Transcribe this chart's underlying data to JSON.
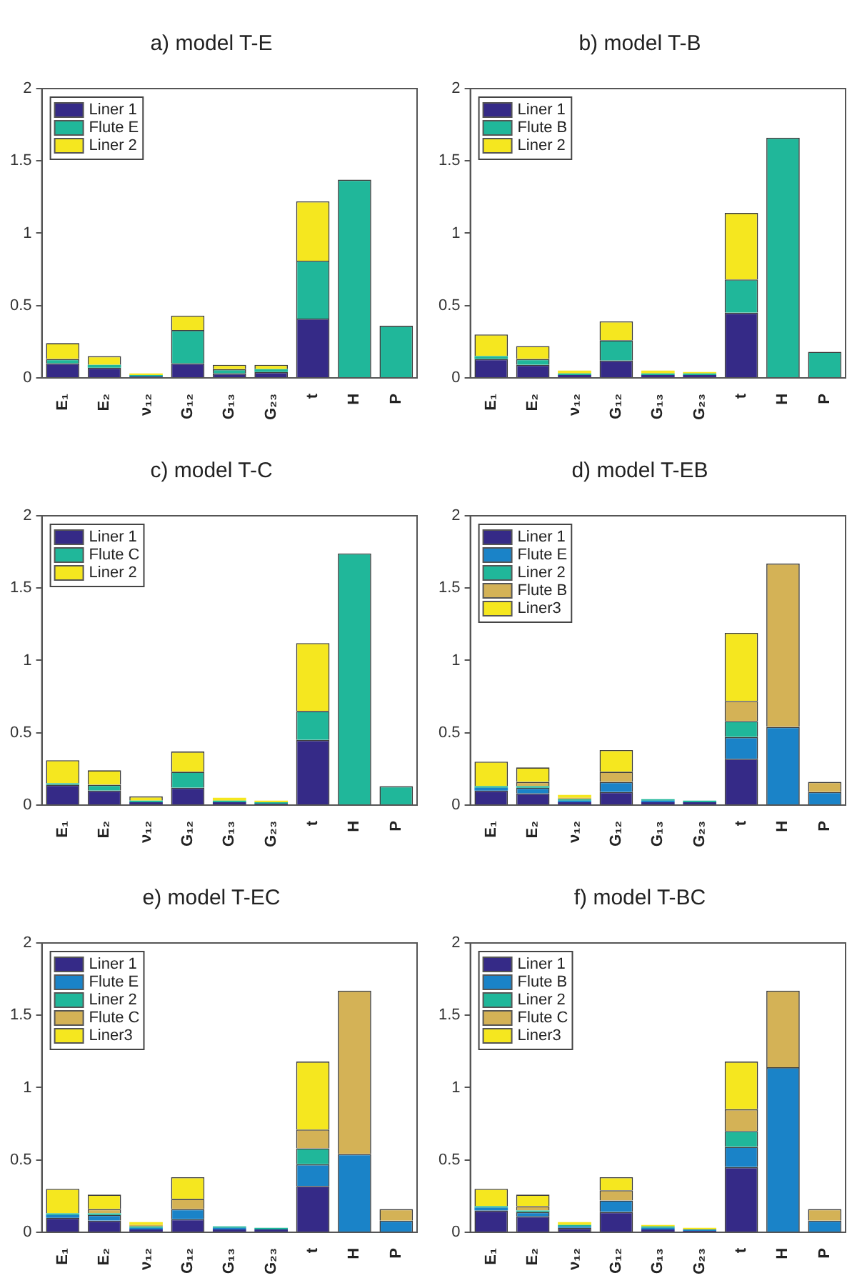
{
  "chart_data": [
    {
      "type": "bar",
      "stacked": true,
      "title": "a) model T-E",
      "categories": [
        "E₁",
        "E₂",
        "ν₁₂",
        "G₁₂",
        "G₁₃",
        "G₂₃",
        "t",
        "H",
        "P"
      ],
      "ylim": [
        0,
        2
      ],
      "yticks": [
        0,
        0.5,
        1,
        1.5,
        2
      ],
      "grid": false,
      "legend": "top left",
      "series": [
        {
          "name": "Liner 1",
          "color": "#352a87",
          "values": [
            0.1,
            0.07,
            0.01,
            0.1,
            0.03,
            0.04,
            0.41,
            0,
            0
          ]
        },
        {
          "name": "Flute E",
          "color": "#20b79a",
          "values": [
            0.03,
            0.02,
            0.01,
            0.23,
            0.03,
            0.02,
            0.4,
            1.37,
            0.36
          ]
        },
        {
          "name": "Liner 2",
          "color": "#f5e71f",
          "values": [
            0.11,
            0.06,
            0.01,
            0.1,
            0.03,
            0.03,
            0.41,
            0,
            0
          ]
        }
      ]
    },
    {
      "type": "bar",
      "stacked": true,
      "title": "b) model T-B",
      "categories": [
        "E₁",
        "E₂",
        "ν₁₂",
        "G₁₂",
        "G₁₃",
        "G₂₃",
        "t",
        "H",
        "P"
      ],
      "ylim": [
        0,
        2
      ],
      "yticks": [
        0,
        0.5,
        1,
        1.5,
        2
      ],
      "grid": false,
      "legend": "top left",
      "series": [
        {
          "name": "Liner 1",
          "color": "#352a87",
          "values": [
            0.13,
            0.09,
            0.02,
            0.12,
            0.02,
            0.02,
            0.45,
            0,
            0
          ]
        },
        {
          "name": "Flute B",
          "color": "#20b79a",
          "values": [
            0.02,
            0.04,
            0.01,
            0.14,
            0.01,
            0.01,
            0.23,
            1.66,
            0.18
          ]
        },
        {
          "name": "Liner 2",
          "color": "#f5e71f",
          "values": [
            0.15,
            0.09,
            0.02,
            0.13,
            0.02,
            0.01,
            0.46,
            0,
            0
          ]
        }
      ]
    },
    {
      "type": "bar",
      "stacked": true,
      "title": "c) model T-C",
      "categories": [
        "E₁",
        "E₂",
        "ν₁₂",
        "G₁₂",
        "G₁₃",
        "G₂₃",
        "t",
        "H",
        "P"
      ],
      "ylim": [
        0,
        2
      ],
      "yticks": [
        0,
        0.5,
        1,
        1.5,
        2
      ],
      "grid": false,
      "legend": "top left",
      "series": [
        {
          "name": "Liner 1",
          "color": "#352a87",
          "values": [
            0.14,
            0.1,
            0.02,
            0.12,
            0.02,
            0.01,
            0.45,
            0,
            0
          ]
        },
        {
          "name": "Flute C",
          "color": "#20b79a",
          "values": [
            0.01,
            0.04,
            0.01,
            0.11,
            0.01,
            0.01,
            0.2,
            1.74,
            0.13
          ]
        },
        {
          "name": "Liner 2",
          "color": "#f5e71f",
          "values": [
            0.16,
            0.1,
            0.03,
            0.14,
            0.02,
            0.01,
            0.47,
            0,
            0
          ]
        }
      ]
    },
    {
      "type": "bar",
      "stacked": true,
      "title": "d) model T-EB",
      "categories": [
        "E₁",
        "E₂",
        "ν₁₂",
        "G₁₂",
        "G₁₃",
        "G₂₃",
        "t",
        "H",
        "P"
      ],
      "ylim": [
        0,
        2
      ],
      "yticks": [
        0,
        0.5,
        1,
        1.5,
        2
      ],
      "grid": false,
      "legend": "top left",
      "series": [
        {
          "name": "Liner 1",
          "color": "#352a87",
          "values": [
            0.1,
            0.08,
            0.02,
            0.09,
            0.02,
            0.02,
            0.32,
            0,
            0
          ]
        },
        {
          "name": "Flute E",
          "color": "#1a83c8",
          "values": [
            0.02,
            0.04,
            0.01,
            0.07,
            0.01,
            0,
            0.15,
            0.54,
            0.09
          ]
        },
        {
          "name": "Liner 2",
          "color": "#20b79a",
          "values": [
            0.01,
            0.01,
            0.01,
            0,
            0.01,
            0.01,
            0.11,
            0,
            0
          ]
        },
        {
          "name": "Flute B",
          "color": "#d4b256",
          "values": [
            0,
            0.03,
            0.01,
            0.07,
            0,
            0,
            0.14,
            1.13,
            0.07
          ]
        },
        {
          "name": "Liner3",
          "color": "#f5e71f",
          "values": [
            0.17,
            0.1,
            0.02,
            0.15,
            0,
            0,
            0.47,
            0,
            0
          ]
        }
      ]
    },
    {
      "type": "bar",
      "stacked": true,
      "title": "e) model T-EC",
      "categories": [
        "E₁",
        "E₂",
        "ν₁₂",
        "G₁₂",
        "G₁₃",
        "G₂₃",
        "t",
        "H",
        "P"
      ],
      "ylim": [
        0,
        2
      ],
      "yticks": [
        0,
        0.5,
        1,
        1.5,
        2
      ],
      "grid": false,
      "legend": "top left",
      "series": [
        {
          "name": "Liner 1",
          "color": "#352a87",
          "values": [
            0.1,
            0.08,
            0.02,
            0.09,
            0.02,
            0.02,
            0.32,
            0,
            0
          ]
        },
        {
          "name": "Flute E",
          "color": "#1a83c8",
          "values": [
            0.02,
            0.04,
            0.01,
            0.07,
            0.01,
            0,
            0.15,
            0.54,
            0.08
          ]
        },
        {
          "name": "Liner 2",
          "color": "#20b79a",
          "values": [
            0.01,
            0.01,
            0.01,
            0,
            0.01,
            0.01,
            0.11,
            0,
            0
          ]
        },
        {
          "name": "Flute C",
          "color": "#d4b256",
          "values": [
            0,
            0.03,
            0.01,
            0.07,
            0,
            0,
            0.13,
            1.13,
            0.08
          ]
        },
        {
          "name": "Liner3",
          "color": "#f5e71f",
          "values": [
            0.17,
            0.1,
            0.02,
            0.15,
            0,
            0,
            0.47,
            0,
            0
          ]
        }
      ]
    },
    {
      "type": "bar",
      "stacked": true,
      "title": "f) model T-BC",
      "categories": [
        "E₁",
        "E₂",
        "ν₁₂",
        "G₁₂",
        "G₁₃",
        "G₂₃",
        "t",
        "H",
        "P"
      ],
      "ylim": [
        0,
        2
      ],
      "yticks": [
        0,
        0.5,
        1,
        1.5,
        2
      ],
      "grid": false,
      "legend": "top left",
      "series": [
        {
          "name": "Liner 1",
          "color": "#352a87",
          "values": [
            0.15,
            0.11,
            0.03,
            0.14,
            0.02,
            0.01,
            0.45,
            0,
            0
          ]
        },
        {
          "name": "Flute B",
          "color": "#1a83c8",
          "values": [
            0.02,
            0.03,
            0.01,
            0.08,
            0.01,
            0.01,
            0.14,
            1.14,
            0.08
          ]
        },
        {
          "name": "Liner 2",
          "color": "#20b79a",
          "values": [
            0.01,
            0.01,
            0.01,
            0,
            0.01,
            0,
            0.11,
            0,
            0
          ]
        },
        {
          "name": "Flute C",
          "color": "#d4b256",
          "values": [
            0,
            0.03,
            0,
            0.07,
            0,
            0,
            0.15,
            0.53,
            0.08
          ]
        },
        {
          "name": "Liner3",
          "color": "#f5e71f",
          "values": [
            0.12,
            0.08,
            0.02,
            0.09,
            0.01,
            0.01,
            0.33,
            0,
            0
          ]
        }
      ]
    }
  ]
}
